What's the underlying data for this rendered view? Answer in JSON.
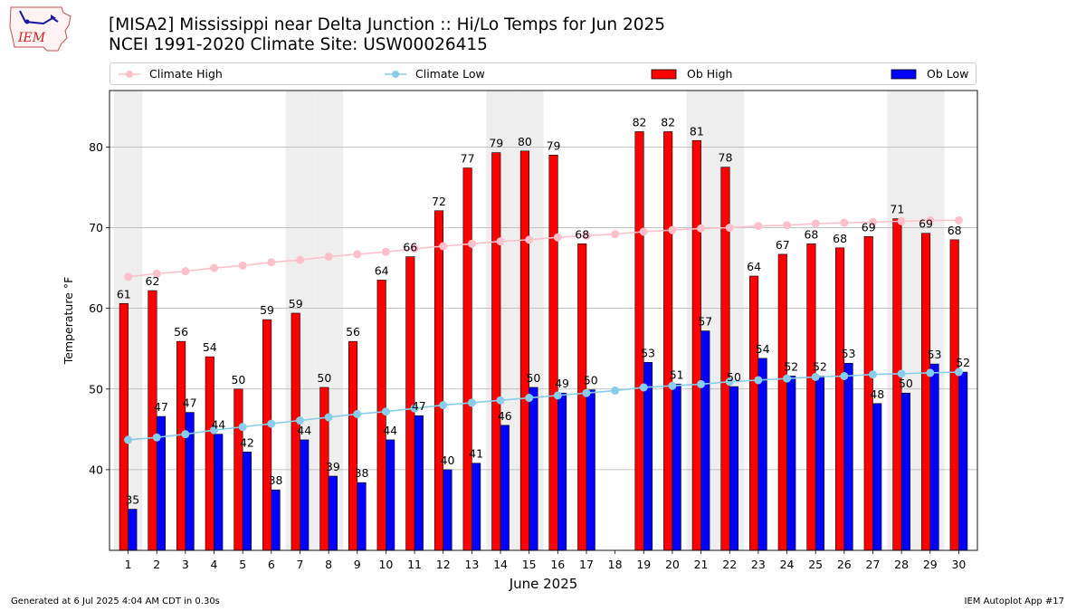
{
  "header": {
    "title_line1": "[MISA2] Mississippi near Delta Junction :: Hi/Lo Temps for Jun 2025",
    "title_line2": "NCEI 1991-2020 Climate Site: USW00026415",
    "logo_text": "IEM"
  },
  "footer": {
    "generated": "Generated at 6 Jul 2025 4:04 AM CDT in 0.30s",
    "app": "IEM Autoplot App #17"
  },
  "colors": {
    "climate_high": "#ffc0cb",
    "climate_low": "#87ceeb",
    "ob_high": "#ff0000",
    "ob_low": "#0000ff",
    "weekend_shade": "#eeeeee",
    "grid": "#b0b0b0"
  },
  "chart_data": {
    "type": "bar",
    "xlabel": "June 2025",
    "ylabel": "Temperature °F",
    "ylim": [
      30,
      87
    ],
    "yticks": [
      40,
      50,
      60,
      70,
      80
    ],
    "grid": "horizontal",
    "legend": "top",
    "categories": [
      "1",
      "2",
      "3",
      "4",
      "5",
      "6",
      "7",
      "8",
      "9",
      "10",
      "11",
      "12",
      "13",
      "14",
      "15",
      "16",
      "17",
      "18",
      "19",
      "20",
      "21",
      "22",
      "23",
      "24",
      "25",
      "26",
      "27",
      "28",
      "29",
      "30"
    ],
    "shaded_days": [
      1,
      7,
      8,
      14,
      15,
      21,
      22,
      28,
      29
    ],
    "series": [
      {
        "name": "Ob High",
        "kind": "bar",
        "values": [
          60.6,
          62.2,
          55.9,
          54.0,
          50.0,
          58.6,
          59.4,
          50.2,
          55.9,
          63.5,
          66.4,
          72.1,
          77.4,
          79.3,
          79.5,
          79.0,
          68.0,
          null,
          81.9,
          81.9,
          80.8,
          77.5,
          64.0,
          66.7,
          68.0,
          67.5,
          68.9,
          71.1,
          69.3,
          68.5
        ],
        "labels": [
          "61",
          "62",
          "56",
          "54",
          "50",
          "59",
          "59",
          "50",
          "56",
          "64",
          "66",
          "72",
          "77",
          "79",
          "80",
          "79",
          "68",
          "",
          "82",
          "82",
          "81",
          "78",
          "64",
          "67",
          "68",
          "68",
          "69",
          "71",
          "69",
          "68"
        ]
      },
      {
        "name": "Ob Low",
        "kind": "bar",
        "values": [
          35.1,
          46.6,
          47.1,
          44.4,
          42.2,
          37.5,
          43.7,
          39.2,
          38.4,
          43.7,
          46.7,
          40.0,
          40.8,
          45.5,
          50.2,
          49.5,
          49.9,
          null,
          53.3,
          50.6,
          57.2,
          50.3,
          53.8,
          51.6,
          51.6,
          53.2,
          48.2,
          49.5,
          53.1,
          52.1
        ],
        "labels": [
          "35",
          "47",
          "47",
          "44",
          "42",
          "38",
          "44",
          "39",
          "38",
          "44",
          "47",
          "40",
          "41",
          "46",
          "50",
          "49",
          "50",
          "",
          "53",
          "51",
          "57",
          "50",
          "54",
          "52",
          "52",
          "53",
          "48",
          "50",
          "53",
          "52"
        ]
      },
      {
        "name": "Climate High",
        "kind": "line",
        "values": [
          63.9,
          64.3,
          64.6,
          65.0,
          65.3,
          65.7,
          66.0,
          66.4,
          66.7,
          67.0,
          67.4,
          67.7,
          68.0,
          68.3,
          68.5,
          68.8,
          69.0,
          69.2,
          69.5,
          69.7,
          69.9,
          70.0,
          70.2,
          70.3,
          70.5,
          70.6,
          70.7,
          70.8,
          70.9,
          70.9
        ]
      },
      {
        "name": "Climate Low",
        "kind": "line",
        "values": [
          43.7,
          44.0,
          44.4,
          44.9,
          45.3,
          45.7,
          46.1,
          46.5,
          46.9,
          47.2,
          47.6,
          48.0,
          48.3,
          48.6,
          48.9,
          49.2,
          49.5,
          49.8,
          50.2,
          50.4,
          50.6,
          50.9,
          51.1,
          51.3,
          51.5,
          51.6,
          51.8,
          51.9,
          52.0,
          52.1
        ]
      }
    ]
  }
}
